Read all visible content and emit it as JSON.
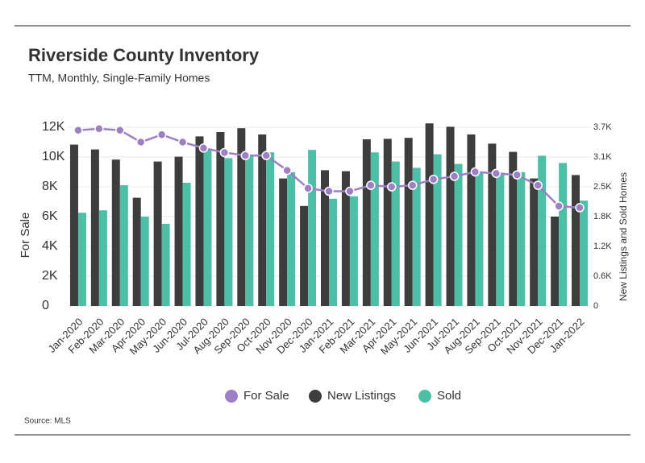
{
  "chart_data": {
    "type": "bar",
    "title": "Riverside County Inventory",
    "subtitle": "TTM, Monthly, Single-Family Homes",
    "source": "Source: MLS",
    "y_label": "For Sale",
    "y2_label": "New Listings and Sold Homes",
    "categories": [
      "Jan-2020",
      "Feb-2020",
      "Mar-2020",
      "Apr-2020",
      "May-2020",
      "Jun-2020",
      "Jul-2020",
      "Aug-2020",
      "Sep-2020",
      "Oct-2020",
      "Nov-2020",
      "Dec-2020",
      "Jan-2021",
      "Feb-2021",
      "Mar-2021",
      "Apr-2021",
      "May-2021",
      "Jun-2021",
      "Jul-2021",
      "Aug-2021",
      "Sep-2021",
      "Oct-2021",
      "Nov-2021",
      "Dec-2021",
      "Jan-2022"
    ],
    "series": [
      {
        "name": "For Sale",
        "type": "line",
        "color": "#9d7fc4",
        "values": [
          11800,
          11900,
          11800,
          11000,
          11500,
          11000,
          10600,
          10300,
          10100,
          10100,
          9100,
          7900,
          7700,
          7700,
          8100,
          8000,
          8100,
          8500,
          8700,
          9000,
          8900,
          8800,
          8100,
          6700,
          6600
        ]
      },
      {
        "name": "New Listings",
        "type": "bar",
        "axis": "y2",
        "color": "#3d3d3d",
        "values": [
          3340,
          3240,
          3030,
          2240,
          2990,
          3090,
          3510,
          3600,
          3680,
          3550,
          2640,
          2070,
          2810,
          2790,
          3450,
          3460,
          3480,
          3780,
          3710,
          3550,
          3360,
          3190,
          2640,
          1850,
          2710
        ]
      },
      {
        "name": "Sold",
        "type": "bar",
        "axis": "y2",
        "color": "#4cbfa6",
        "values": [
          1930,
          1980,
          2500,
          1850,
          1700,
          2550,
          3240,
          3060,
          3110,
          3180,
          2770,
          3230,
          2220,
          2270,
          3180,
          2990,
          2860,
          3140,
          2940,
          2770,
          2760,
          2770,
          3110,
          2960,
          2180
        ]
      }
    ],
    "ylim": [
      0,
      12000
    ],
    "yticks": [
      0,
      {
        "value": 2000,
        "label": "2K"
      },
      {
        "value": 4000,
        "label": "4K"
      },
      {
        "value": 6000,
        "label": "6K"
      },
      {
        "value": 8000,
        "label": "8K"
      },
      {
        "value": 10000,
        "label": "10K"
      },
      {
        "value": 12000,
        "label": "12K"
      }
    ],
    "y2lim": [
      0,
      3700
    ],
    "y2ticks": [
      0,
      {
        "value": 617,
        "label": "0.6K"
      },
      {
        "value": 1233,
        "label": "1.2K"
      },
      {
        "value": 1850,
        "label": "1.8K"
      },
      {
        "value": 2467,
        "label": "2.5K"
      },
      {
        "value": 3083,
        "label": "3.1K"
      },
      {
        "value": 3700,
        "label": "3.7K"
      }
    ],
    "grid": true,
    "legend": "bottom"
  }
}
